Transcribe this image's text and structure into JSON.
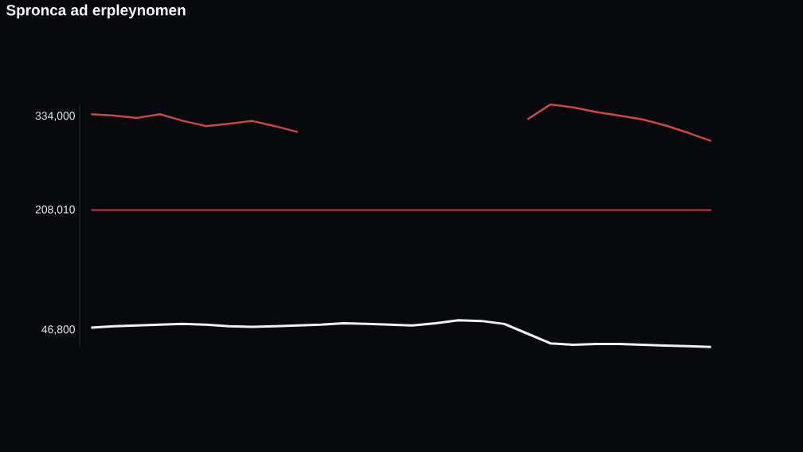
{
  "chart_data": {
    "type": "line",
    "title": "Spronca ad erpleynomen",
    "categories": [
      null,
      null,
      null,
      null,
      null,
      null,
      null,
      null,
      null,
      null,
      null,
      null,
      null,
      null,
      null,
      null,
      null,
      null,
      null,
      null,
      null,
      null,
      null,
      null,
      null,
      null,
      null,
      null
    ],
    "series": [
      {
        "color": "#c84848",
        "values": [
          337000,
          335000,
          332000,
          337000,
          328000,
          321000,
          324000,
          328000,
          321000,
          313000,
          null,
          null,
          null,
          null,
          null,
          null,
          null,
          null,
          null,
          330000,
          350000,
          346000,
          340000,
          335000,
          330000,
          322000,
          312000,
          301000
        ]
      },
      {
        "color": "#f0f0f0",
        "values": [
          50000,
          52000,
          53000,
          54000,
          55000,
          54000,
          52000,
          51000,
          52000,
          53000,
          54000,
          56000,
          55000,
          54000,
          53000,
          56000,
          60000,
          59000,
          55000,
          42000,
          29000,
          27000,
          28000,
          28000,
          27000,
          26000,
          25000,
          24000
        ]
      }
    ],
    "ylim": [
      24000,
      350000
    ],
    "yticks": [
      {
        "value": 46800,
        "label": "46,800"
      },
      {
        "value": 208010,
        "label": "208,010"
      },
      {
        "value": 334000,
        "label": "334,000"
      }
    ],
    "ref_lines": [
      {
        "axis": "y",
        "value": 208010,
        "color": "#c83c3c"
      }
    ],
    "grid": false,
    "legend": false,
    "marker": "none",
    "line_style": "solid"
  }
}
